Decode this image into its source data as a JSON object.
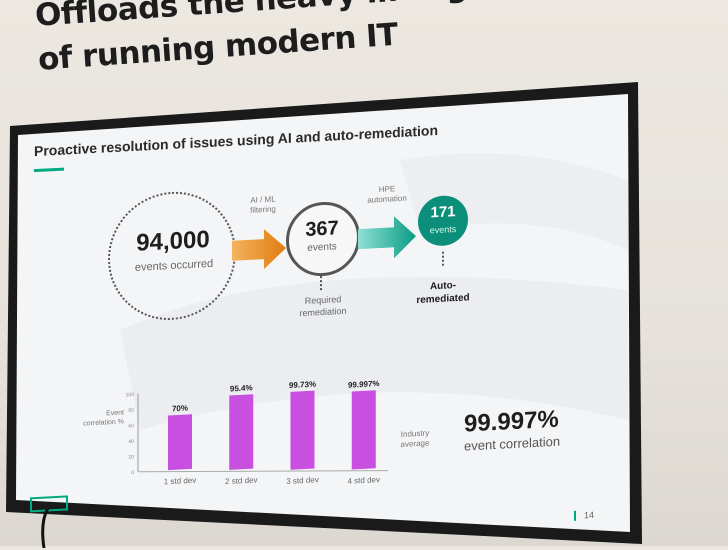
{
  "wall": {
    "line1": "Offloads the heavy lifting",
    "line2": "of running modern IT"
  },
  "slide": {
    "title": "Proactive resolution of issues using AI and auto-remediation",
    "flow": {
      "occurred": {
        "value": "94,000",
        "label": "events occurred"
      },
      "filter_label_1": "AI / ML",
      "filter_label_2": "filtering",
      "required": {
        "value": "367",
        "label": "events",
        "note_1": "Required",
        "note_2": "remediation"
      },
      "automation_label_1": "HPE",
      "automation_label_2": "automation",
      "auto": {
        "value": "171",
        "label": "events",
        "note_1": "Auto-",
        "note_2": "remediated"
      }
    },
    "stat": {
      "value": "99.997%",
      "label": "event correlation"
    },
    "page_number": "14",
    "colors": {
      "accent": "#01a982",
      "bar": "#c94fe0",
      "arrow_orange": "#e8891c",
      "teal": "#0b8f7a"
    }
  },
  "chart_data": {
    "type": "bar",
    "categories": [
      "1 std dev",
      "2 std dev",
      "3 std dev",
      "4 std dev"
    ],
    "values": [
      70,
      95.4,
      99.73,
      99.997
    ],
    "value_labels": [
      "70%",
      "95.4%",
      "99.73%",
      "99.997%"
    ],
    "ylabel_1": "Event",
    "ylabel_2": "correlation %",
    "ylim": [
      0,
      100
    ],
    "yticks": [
      "100",
      "80",
      "60",
      "40",
      "20",
      "0"
    ],
    "annotation_1": "Industry",
    "annotation_2": "average",
    "grid": false
  }
}
